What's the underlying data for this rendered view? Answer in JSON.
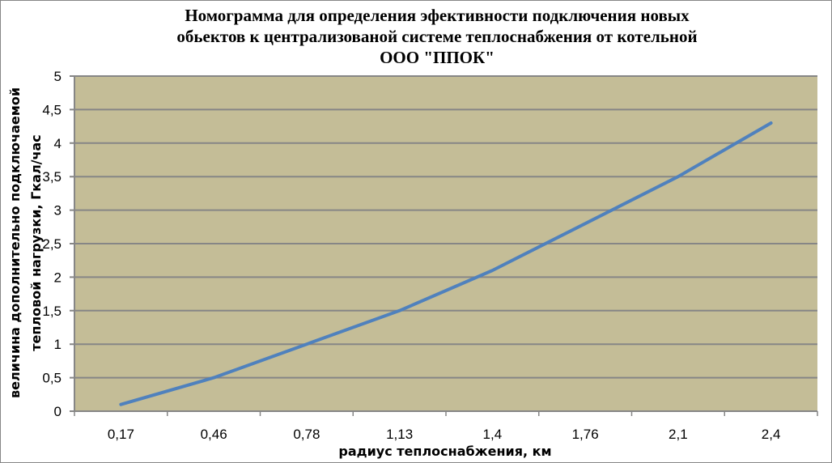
{
  "chart_data": {
    "type": "line",
    "title": [
      "Номограмма для определения эфективности подключения новых",
      "обьектов к централизованой системе теплоснабжения от котельной",
      "ООО \"ППОК\""
    ],
    "xlabel": "радиус теплоснабжения, км",
    "ylabel": [
      "величина дополнительно подключаемой",
      "тепловой нагрузки, Гкал/час"
    ],
    "categories": [
      "0,17",
      "0,46",
      "0,78",
      "1,13",
      "1,4",
      "1,76",
      "2,1",
      "2,4"
    ],
    "series": [
      {
        "values": [
          0.1,
          0.5,
          1.0,
          1.5,
          2.1,
          2.8,
          3.5,
          4.3
        ],
        "color": "#4f81bd"
      }
    ],
    "ylim": [
      0,
      5
    ],
    "yticks": [
      "0",
      "0,5",
      "1",
      "1,5",
      "2",
      "2,5",
      "3",
      "3,5",
      "4",
      "4,5",
      "5"
    ],
    "grid": true,
    "plot_background": "#c4bd97",
    "legend": "none"
  }
}
